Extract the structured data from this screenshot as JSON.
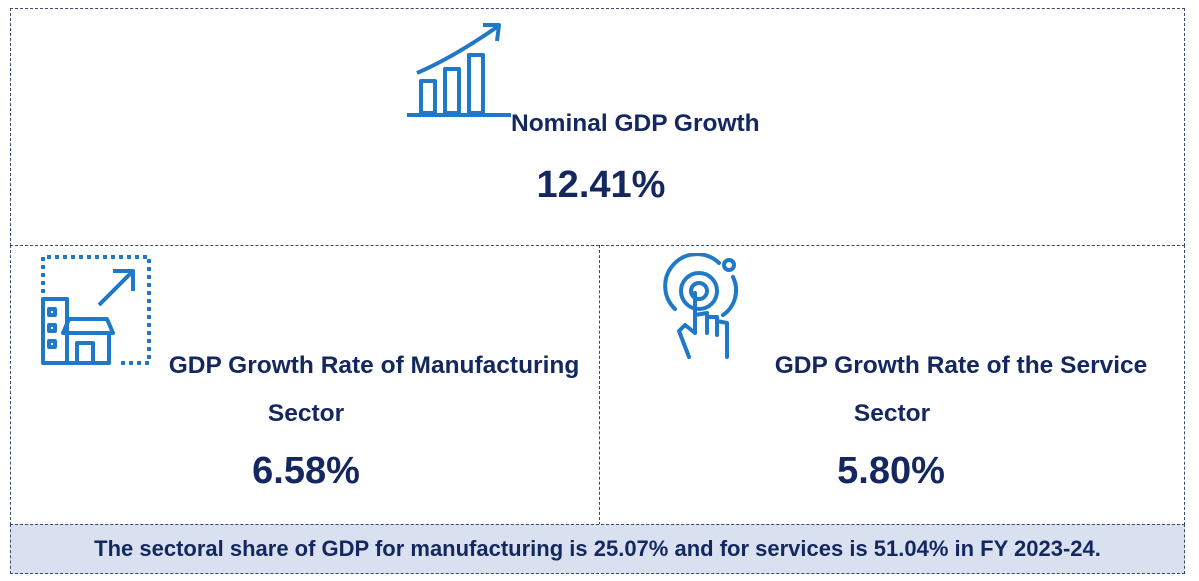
{
  "nominal": {
    "label": "Nominal GDP Growth",
    "value": "12.41%",
    "icon": "bar-chart-growth-icon"
  },
  "manufacturing": {
    "label_line1": "GDP Growth Rate of Manufacturing",
    "label_line2": "Sector",
    "value": "6.58%",
    "icon": "factory-growth-icon"
  },
  "services": {
    "label_line1": "GDP Growth Rate of the Service",
    "label_line2": "Sector",
    "value": "5.80%",
    "icon": "touch-tap-icon"
  },
  "footer": {
    "text": "The sectoral share of GDP for manufacturing is 25.07% and for services is 51.04% in FY 2023-24."
  },
  "colors": {
    "text": "#14275e",
    "icon": "#1f78c8",
    "footer_bg": "#d9e1f1",
    "border": "#3a4a6b"
  }
}
